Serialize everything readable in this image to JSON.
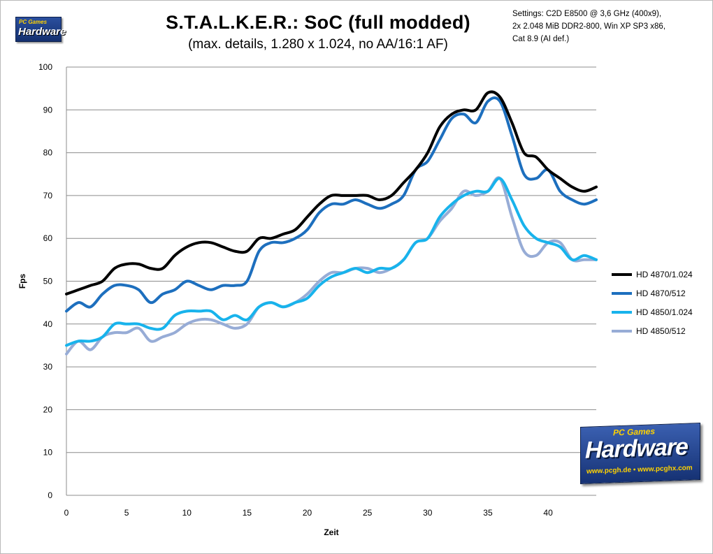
{
  "logo": {
    "small_text": "Hardware",
    "small_sub": "PC Games",
    "big_text": "Hardware",
    "big_sub": "PC Games",
    "big_url": "www.pcgh.de • www.pcghx.com"
  },
  "settings_lines": [
    "Settings: C2D E8500  @ 3,6 GHz (400x9),",
    "2x 2.048 MiB DDR2-800, Win XP SP3 x86,",
    "Cat 8.9 (AI def.)"
  ],
  "chart_data": {
    "type": "line",
    "title": "S.T.A.L.K.E.R.: SoC  (full modded)",
    "subtitle": "(max. details, 1.280 x 1.024, no AA/16:1 AF)",
    "xlabel": "Zeit",
    "ylabel": "Fps",
    "xlim": [
      0,
      44
    ],
    "ylim": [
      0,
      100
    ],
    "x_ticks": [
      0,
      5,
      10,
      15,
      20,
      25,
      30,
      35,
      40
    ],
    "y_ticks": [
      0,
      10,
      20,
      30,
      40,
      50,
      60,
      70,
      80,
      90,
      100
    ],
    "grid": "horizontal",
    "legend_position": "right",
    "x": [
      0,
      1,
      2,
      3,
      4,
      5,
      6,
      7,
      8,
      9,
      10,
      11,
      12,
      13,
      14,
      15,
      16,
      17,
      18,
      19,
      20,
      21,
      22,
      23,
      24,
      25,
      26,
      27,
      28,
      29,
      30,
      31,
      32,
      33,
      34,
      35,
      36,
      37,
      38,
      39,
      40,
      41,
      42,
      43,
      44
    ],
    "series": [
      {
        "name": "HD 4870/1.024",
        "color": "#000000",
        "values": [
          47,
          48,
          49,
          50,
          53,
          54,
          54,
          53,
          53,
          56,
          58,
          59,
          59,
          58,
          57,
          57,
          60,
          60,
          61,
          62,
          65,
          68,
          70,
          70,
          70,
          70,
          69,
          70,
          73,
          76,
          80,
          86,
          89,
          90,
          90,
          94,
          93,
          87,
          80,
          79,
          76,
          74,
          72,
          71,
          72
        ]
      },
      {
        "name": "HD 4870/512",
        "color": "#1d6fbe",
        "values": [
          43,
          45,
          44,
          47,
          49,
          49,
          48,
          45,
          47,
          48,
          50,
          49,
          48,
          49,
          49,
          50,
          57,
          59,
          59,
          60,
          62,
          66,
          68,
          68,
          69,
          68,
          67,
          68,
          70,
          76,
          78,
          83,
          88,
          89,
          87,
          92,
          92,
          84,
          75,
          74,
          76,
          71,
          69,
          68,
          69
        ]
      },
      {
        "name": "HD 4850/1.024",
        "color": "#18b3ec",
        "values": [
          35,
          36,
          36,
          37,
          40,
          40,
          40,
          39,
          39,
          42,
          43,
          43,
          43,
          41,
          42,
          41,
          44,
          45,
          44,
          45,
          46,
          49,
          51,
          52,
          53,
          52,
          53,
          53,
          55,
          59,
          60,
          65,
          68,
          70,
          71,
          71,
          74,
          69,
          63,
          60,
          59,
          58,
          55,
          56,
          55
        ]
      },
      {
        "name": "HD 4850/512",
        "color": "#97acd6",
        "values": [
          33,
          36,
          34,
          37,
          38,
          38,
          39,
          36,
          37,
          38,
          40,
          41,
          41,
          40,
          39,
          40,
          44,
          45,
          44,
          45,
          47,
          50,
          52,
          52,
          53,
          53,
          52,
          53,
          55,
          59,
          60,
          64,
          67,
          71,
          70,
          71,
          74,
          65,
          57,
          56,
          59,
          59,
          55,
          55,
          55
        ]
      }
    ]
  }
}
